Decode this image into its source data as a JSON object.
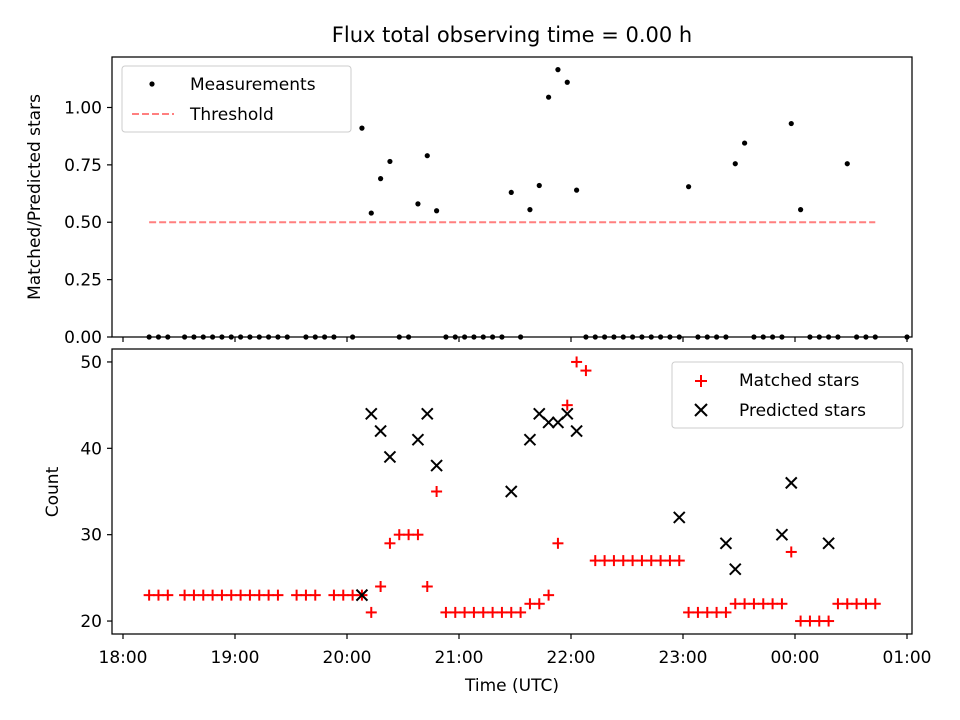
{
  "figure": {
    "title": "Flux total observing time = 0.00 h"
  },
  "chart_data": [
    {
      "type": "scatter",
      "title": "Flux total observing time = 0.00 h",
      "xlabel": "",
      "ylabel": "Matched/Predicted stars",
      "xlim": [
        "18:00",
        "01:00"
      ],
      "ylim": [
        0,
        1.22
      ],
      "yticks": [
        "0.00",
        "0.25",
        "0.50",
        "0.75",
        "1.00"
      ],
      "legend": {
        "placement": "top-left",
        "entries": [
          "Measurements",
          "Threshold"
        ]
      },
      "grid": false,
      "series": [
        {
          "name": "Measurements",
          "color": "#000000",
          "marker": "dot",
          "x": [
            "18:14",
            "18:19",
            "18:24",
            "18:33",
            "18:38",
            "18:43",
            "18:48",
            "18:53",
            "18:58",
            "19:03",
            "19:08",
            "19:13",
            "19:18",
            "19:23",
            "19:28",
            "19:38",
            "19:43",
            "19:48",
            "19:53",
            "20:03",
            "20:08",
            "20:13",
            "20:18",
            "20:23",
            "20:28",
            "20:33",
            "20:38",
            "20:43",
            "20:48",
            "20:53",
            "20:58",
            "21:03",
            "21:08",
            "21:13",
            "21:18",
            "21:23",
            "21:28",
            "21:33",
            "21:38",
            "21:43",
            "21:48",
            "21:53",
            "21:58",
            "22:03",
            "22:08",
            "22:13",
            "22:18",
            "22:23",
            "22:28",
            "22:33",
            "22:38",
            "22:43",
            "22:48",
            "22:53",
            "22:58",
            "23:03",
            "23:08",
            "23:13",
            "23:18",
            "23:23",
            "23:28",
            "23:33",
            "23:38",
            "23:43",
            "23:48",
            "23:53",
            "23:58",
            "00:03",
            "00:08",
            "00:13",
            "00:18",
            "00:23",
            "00:28",
            "00:33",
            "00:38",
            "00:43",
            "01:00"
          ],
          "y": [
            0,
            0,
            0,
            0,
            0,
            0,
            0,
            0,
            0,
            0,
            0,
            0,
            0,
            0,
            0,
            0,
            0,
            0,
            0,
            0,
            0.91,
            0.54,
            0.69,
            0.765,
            0,
            0,
            0.58,
            0.79,
            0.55,
            0,
            0,
            0,
            0,
            0,
            0,
            0,
            0.63,
            0,
            0.555,
            0.66,
            1.045,
            1.165,
            1.11,
            0.64,
            0,
            0,
            0,
            0,
            0,
            0,
            0,
            0,
            0,
            0,
            0,
            0.655,
            0,
            0,
            0,
            0,
            0.755,
            0.845,
            0,
            0,
            0,
            0,
            0.93,
            0.555,
            0,
            0,
            0,
            0,
            0.755,
            0,
            0,
            0,
            0
          ]
        },
        {
          "name": "Threshold",
          "color": "#ff7f7f",
          "style": "dashed",
          "x": [
            "18:14",
            "00:43"
          ],
          "y": [
            0.5,
            0.5
          ]
        }
      ]
    },
    {
      "type": "scatter",
      "title": "",
      "xlabel": "Time (UTC)",
      "ylabel": "Count",
      "xlim": [
        "18:00",
        "01:00"
      ],
      "ylim": [
        18.5,
        51.5
      ],
      "xticks": [
        "18:00",
        "19:00",
        "20:00",
        "21:00",
        "22:00",
        "23:00",
        "00:00",
        "01:00"
      ],
      "yticks": [
        "20",
        "30",
        "40",
        "50"
      ],
      "legend": {
        "placement": "top-right",
        "entries": [
          "Matched stars",
          "Predicted stars"
        ]
      },
      "grid": false,
      "series": [
        {
          "name": "Matched stars",
          "color": "#ff0000",
          "marker": "plus",
          "x": [
            "18:14",
            "18:19",
            "18:24",
            "18:33",
            "18:38",
            "18:43",
            "18:48",
            "18:53",
            "18:58",
            "19:03",
            "19:08",
            "19:13",
            "19:18",
            "19:23",
            "19:33",
            "19:38",
            "19:43",
            "19:53",
            "19:58",
            "20:03",
            "20:08",
            "20:13",
            "20:18",
            "20:23",
            "20:28",
            "20:33",
            "20:38",
            "20:43",
            "20:48",
            "20:53",
            "20:58",
            "21:03",
            "21:08",
            "21:13",
            "21:18",
            "21:23",
            "21:28",
            "21:33",
            "21:38",
            "21:43",
            "21:48",
            "21:53",
            "21:58",
            "22:03",
            "22:08",
            "22:13",
            "22:18",
            "22:23",
            "22:28",
            "22:33",
            "22:38",
            "22:43",
            "22:48",
            "22:53",
            "22:58",
            "23:03",
            "23:08",
            "23:13",
            "23:18",
            "23:23",
            "23:28",
            "23:33",
            "23:38",
            "23:43",
            "23:48",
            "23:53",
            "23:58",
            "00:03",
            "00:08",
            "00:13",
            "00:18",
            "00:23",
            "00:28",
            "00:33",
            "00:38",
            "00:43"
          ],
          "y": [
            23,
            23,
            23,
            23,
            23,
            23,
            23,
            23,
            23,
            23,
            23,
            23,
            23,
            23,
            23,
            23,
            23,
            23,
            23,
            23,
            23,
            21,
            24,
            29,
            30,
            30,
            30,
            24,
            35,
            21,
            21,
            21,
            21,
            21,
            21,
            21,
            21,
            21,
            22,
            22,
            23,
            29,
            45,
            50,
            49,
            27,
            27,
            27,
            27,
            27,
            27,
            27,
            27,
            27,
            27,
            21,
            21,
            21,
            21,
            21,
            22,
            22,
            22,
            22,
            22,
            22,
            28,
            20,
            20,
            20,
            20,
            22,
            22,
            22,
            22,
            22
          ]
        },
        {
          "name": "Predicted stars",
          "color": "#000000",
          "marker": "x",
          "x": [
            "20:08",
            "20:13",
            "20:18",
            "20:23",
            "20:38",
            "20:43",
            "20:48",
            "21:28",
            "21:38",
            "21:43",
            "21:48",
            "21:53",
            "21:58",
            "22:03",
            "22:58",
            "23:23",
            "23:28",
            "23:53",
            "23:58",
            "00:18"
          ],
          "y": [
            23,
            44,
            42,
            39,
            41,
            44,
            38,
            35,
            41,
            44,
            43,
            43,
            44,
            42,
            32,
            29,
            26,
            30,
            36,
            29
          ]
        }
      ]
    }
  ]
}
